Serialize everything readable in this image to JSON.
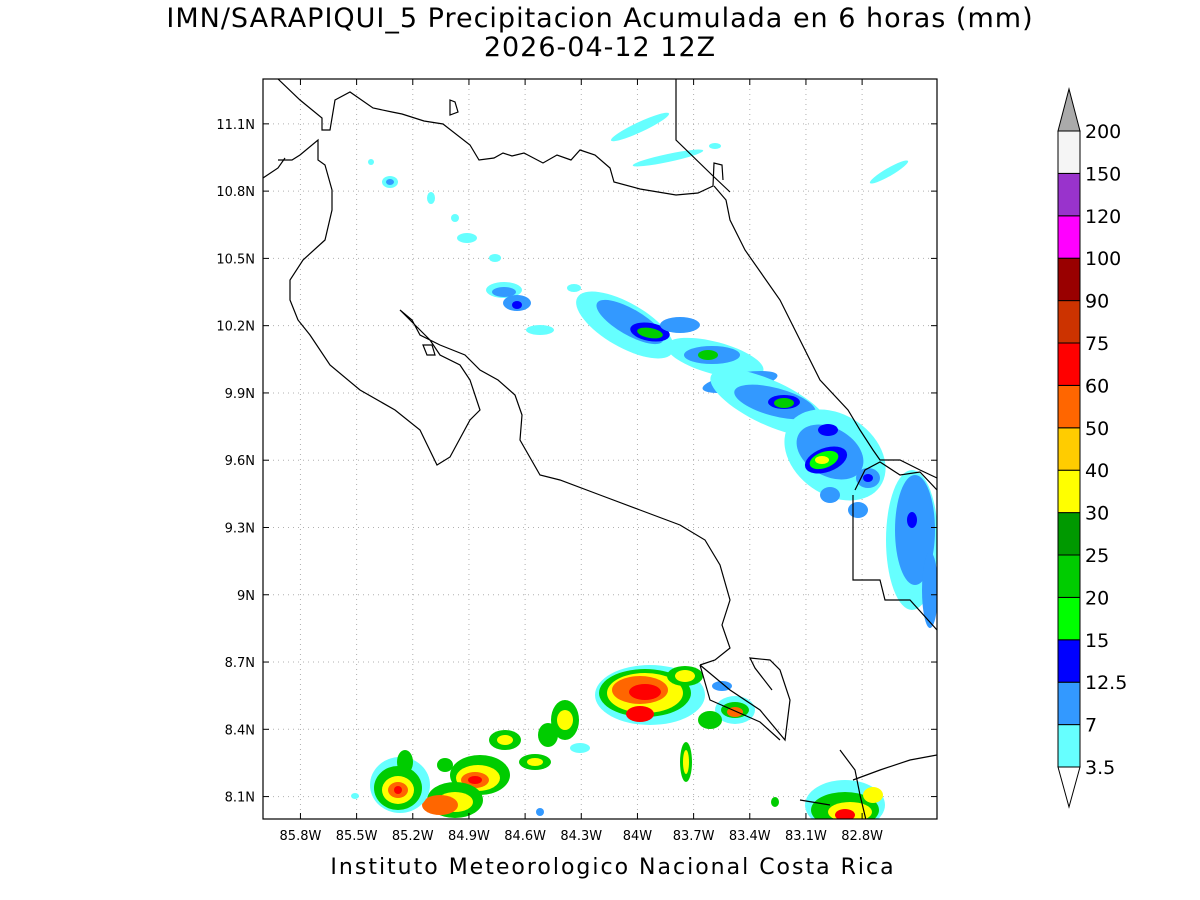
{
  "title": {
    "line1": "IMN/SARAPIQUI_5 Precipitacion Acumulada en 6 horas (mm)",
    "line2": "2026-04-12 12Z"
  },
  "map": {
    "lon_range": [
      -86.0,
      -82.4
    ],
    "lat_range": [
      8.0,
      11.3
    ],
    "lon_ticks": [
      "85.8W",
      "85.5W",
      "85.2W",
      "84.9W",
      "84.6W",
      "84.3W",
      "84W",
      "83.7W",
      "83.4W",
      "83.1W",
      "82.8W"
    ],
    "lat_ticks": [
      "8.1N",
      "8.4N",
      "8.7N",
      "9N",
      "9.3N",
      "9.6N",
      "9.9N",
      "10.2N",
      "10.5N",
      "10.8N",
      "11.1N"
    ],
    "grid": "dotted"
  },
  "colorbar": {
    "labels": [
      "3.5",
      "7",
      "12.5",
      "15",
      "20",
      "25",
      "30",
      "40",
      "50",
      "60",
      "75",
      "90",
      "100",
      "120",
      "150",
      "200"
    ],
    "colors": [
      "#66ffff",
      "#3399ff",
      "#0000ff",
      "#00ff00",
      "#00cc00",
      "#009900",
      "#ffff00",
      "#ffcc00",
      "#ff6600",
      "#ff0000",
      "#cc3300",
      "#990000",
      "#ff00ff",
      "#9933cc",
      "#f5f5f5",
      "#aaaaaa"
    ]
  },
  "footer": "Instituto Meteorologico Nacional Costa Rica"
}
